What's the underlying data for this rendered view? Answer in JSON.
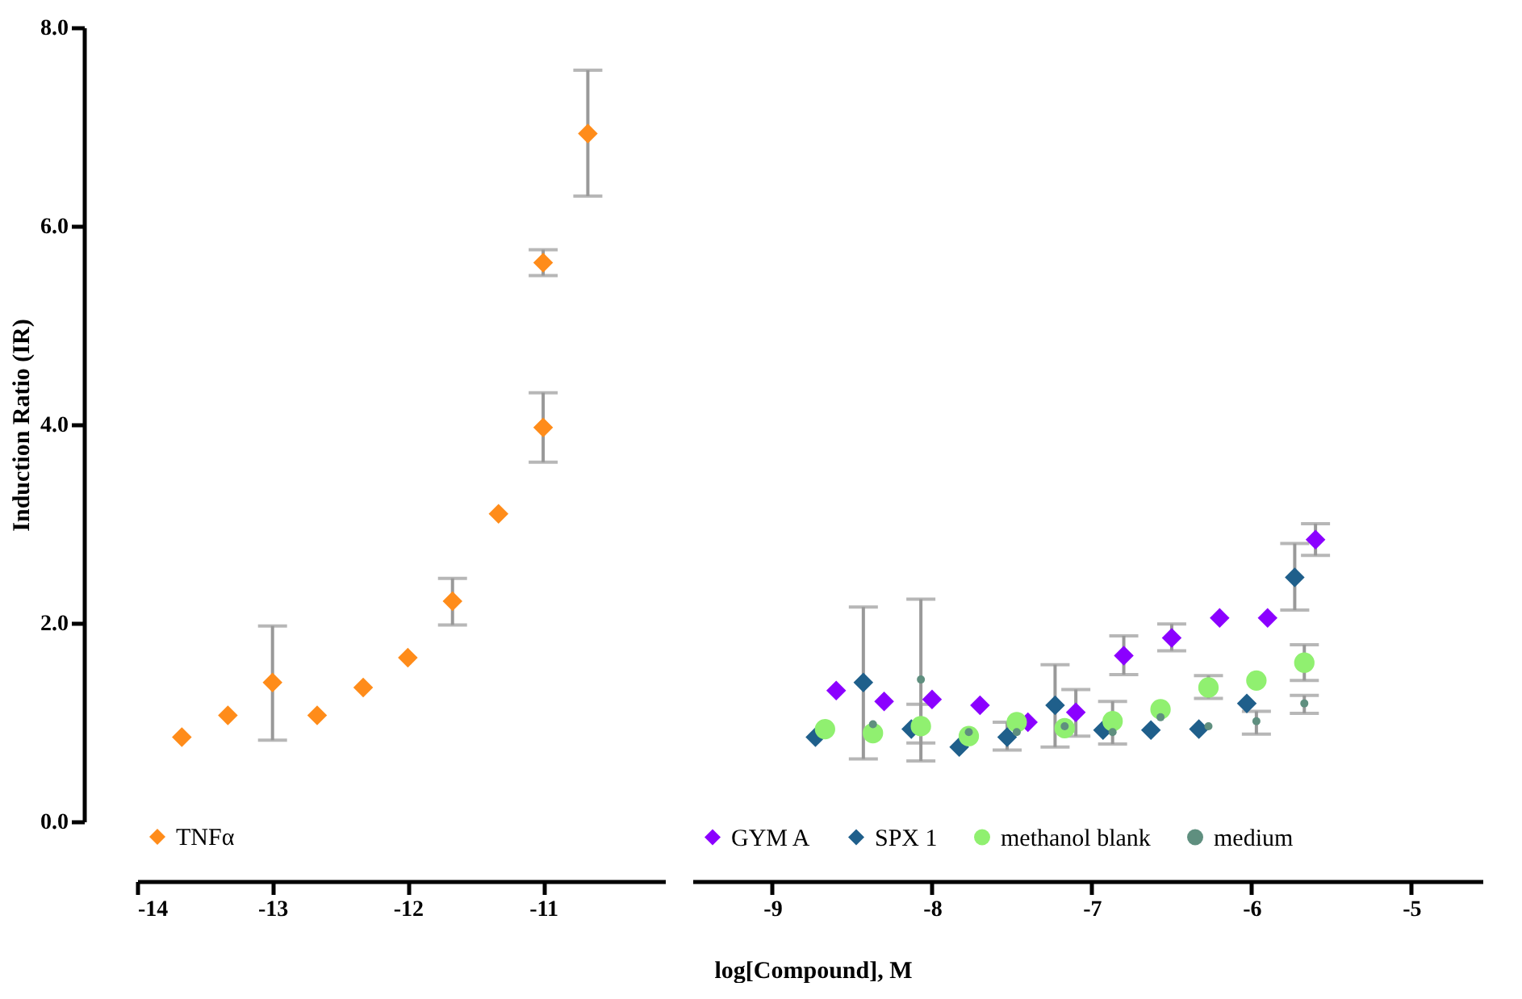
{
  "chart_data": [
    {
      "type": "scatter",
      "ylabel": "Induction Ratio (IR)",
      "xlim": [
        -14,
        -10.1
      ],
      "xticks": [
        -14,
        -13,
        -12,
        -11
      ],
      "ylim": [
        0,
        8
      ],
      "yticks": [
        {
          "value": 0,
          "label": "0.0"
        },
        {
          "value": 2,
          "label": "2.0"
        },
        {
          "value": 4,
          "label": "4.0"
        },
        {
          "value": 6,
          "label": "6.0"
        },
        {
          "value": 8,
          "label": "8.0"
        }
      ],
      "grid": false,
      "legend": "bottom left",
      "tick_labels": "xy",
      "series": [
        {
          "name": "TNFα",
          "color": "#ff8c1a",
          "marker": "diamond",
          "x": [
            -13.67,
            -13.33,
            -13.0,
            -12.67,
            -12.33,
            -12.0,
            -11.67,
            -11.33,
            -11.0,
            -11.0,
            -10.67
          ],
          "values": [
            0.85,
            1.07,
            1.4,
            1.07,
            1.35,
            1.65,
            2.22,
            3.1,
            3.97,
            5.63,
            6.93
          ],
          "errors": [
            null,
            null,
            [
              0.82,
              1.97
            ],
            null,
            null,
            null,
            [
              1.98,
              2.45
            ],
            null,
            [
              3.62,
              4.32
            ],
            [
              5.5,
              5.76
            ],
            [
              6.3,
              7.57
            ]
          ]
        }
      ]
    },
    {
      "type": "scatter",
      "xlabel": "log[Compound], M",
      "xlim": [
        -9.5,
        -4.55
      ],
      "xticks": [
        -9,
        -8,
        -7,
        -6,
        -5
      ],
      "ylim": [
        0,
        8
      ],
      "grid": false,
      "legend": "bottom left",
      "tick_labels": "x",
      "series": [
        {
          "name": "GYM A",
          "color": "#8b00ff",
          "marker": "diamond",
          "x": [
            -8.6,
            -8.3,
            -8.0,
            -7.7,
            -7.4,
            -7.1,
            -6.8,
            -6.5,
            -6.2,
            -5.9,
            -5.6
          ],
          "values": [
            1.32,
            1.21,
            1.23,
            1.17,
            1.0,
            1.1,
            1.67,
            1.85,
            2.05,
            2.05,
            2.84
          ],
          "errors": [
            null,
            null,
            null,
            null,
            null,
            [
              0.86,
              1.33
            ],
            [
              1.48,
              1.87
            ],
            [
              1.72,
              1.99
            ],
            null,
            null,
            [
              2.68,
              3.0
            ]
          ]
        },
        {
          "name": "SPX 1",
          "color": "#1f5f8b",
          "marker": "diamond",
          "x": [
            -8.73,
            -8.43,
            -8.13,
            -7.83,
            -7.53,
            -7.23,
            -6.93,
            -6.63,
            -6.33,
            -6.03,
            -5.73
          ],
          "values": [
            0.85,
            1.4,
            0.93,
            0.75,
            0.85,
            1.17,
            0.92,
            0.92,
            0.93,
            1.19,
            2.46
          ],
          "errors": [
            null,
            [
              0.63,
              2.16
            ],
            null,
            null,
            [
              0.72,
              1.0
            ],
            [
              0.75,
              1.58
            ],
            null,
            null,
            null,
            null,
            [
              2.13,
              2.8
            ]
          ]
        },
        {
          "name": "methanol blank",
          "color": "#90f070",
          "marker": "circle",
          "x": [
            -8.67,
            -8.37,
            -8.07,
            -7.77,
            -7.47,
            -7.17,
            -6.87,
            -6.57,
            -6.27,
            -5.97,
            -5.67
          ],
          "values": [
            0.93,
            0.89,
            0.96,
            0.86,
            1.0,
            0.94,
            1.01,
            1.13,
            1.35,
            1.42,
            1.6
          ],
          "errors": [
            null,
            null,
            [
              0.79,
              1.18
            ],
            null,
            null,
            null,
            [
              0.78,
              1.21
            ],
            null,
            [
              1.24,
              1.47
            ],
            null,
            [
              1.42,
              1.78
            ]
          ]
        },
        {
          "name": "medium",
          "color": "#5f8f7f",
          "marker": "circle",
          "x": [
            -8.37,
            -8.07,
            -7.77,
            -7.47,
            -7.17,
            -6.87,
            -6.57,
            -6.27,
            -5.97,
            -5.67
          ],
          "values": [
            0.98,
            1.43,
            0.9,
            0.9,
            0.96,
            0.9,
            1.05,
            0.96,
            1.01,
            1.19
          ],
          "errors": [
            null,
            [
              0.61,
              2.24
            ],
            null,
            null,
            null,
            null,
            null,
            null,
            [
              0.88,
              1.11
            ],
            [
              1.09,
              1.27
            ]
          ]
        }
      ]
    }
  ]
}
